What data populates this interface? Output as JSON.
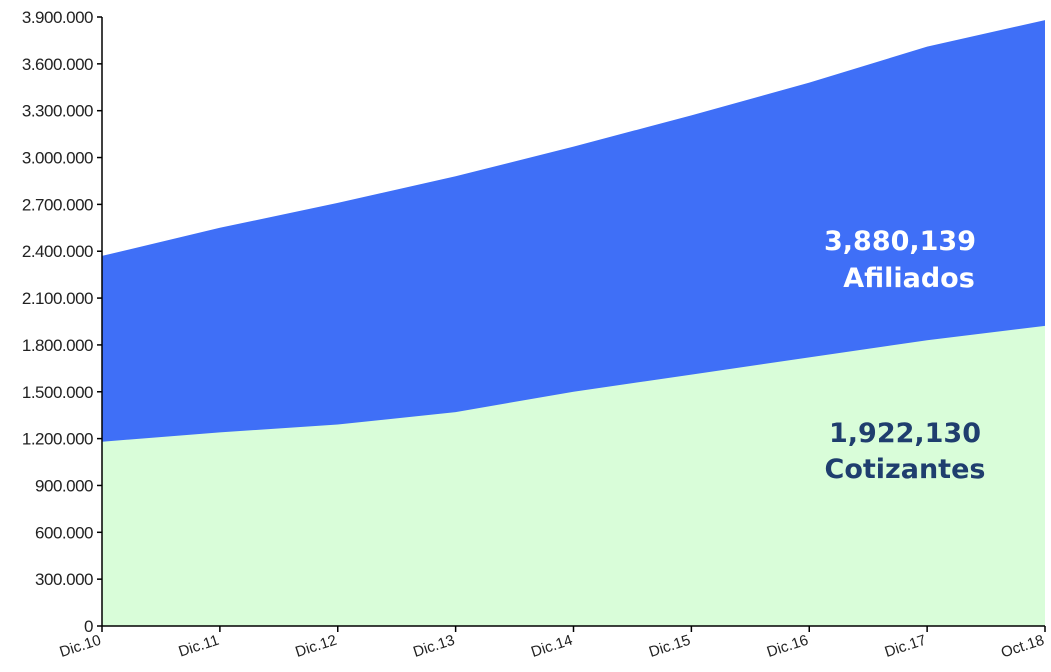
{
  "chart_data": {
    "type": "area",
    "stacked": false,
    "grid": false,
    "categories": [
      "Dic.10",
      "Dic.11",
      "Dic.12",
      "Dic.13",
      "Dic.14",
      "Dic.15",
      "Dic.16",
      "Dic.17",
      "Oct.18"
    ],
    "ylim": [
      0,
      3900000
    ],
    "yticks": [
      "0",
      "300.000",
      "600.000",
      "900.000",
      "1.200.000",
      "1.500.000",
      "1.800.000",
      "2.100.000",
      "2.400.000",
      "2.700.000",
      "3.000.000",
      "3.300.000",
      "3.600.000",
      "3.900.000"
    ],
    "ytick_values": [
      0,
      300000,
      600000,
      900000,
      1200000,
      1500000,
      1800000,
      2100000,
      2400000,
      2700000,
      3000000,
      3300000,
      3600000,
      3900000
    ],
    "series": [
      {
        "name": "Afiliados",
        "values": [
          2370000,
          2550000,
          2710000,
          2880000,
          3070000,
          3270000,
          3480000,
          3710000,
          3880139
        ],
        "color": "#3f6ff7",
        "annotation": {
          "value": "3,880,139",
          "label": "Afiliados",
          "color": "#ffffff"
        }
      },
      {
        "name": "Cotizantes",
        "values": [
          1180000,
          1240000,
          1290000,
          1370000,
          1500000,
          1610000,
          1720000,
          1830000,
          1922130
        ],
        "color": "#d9fdd9",
        "annotation": {
          "value": "1,922,130",
          "label": "Cotizantes",
          "color": "#1f3e6e"
        }
      }
    ]
  }
}
